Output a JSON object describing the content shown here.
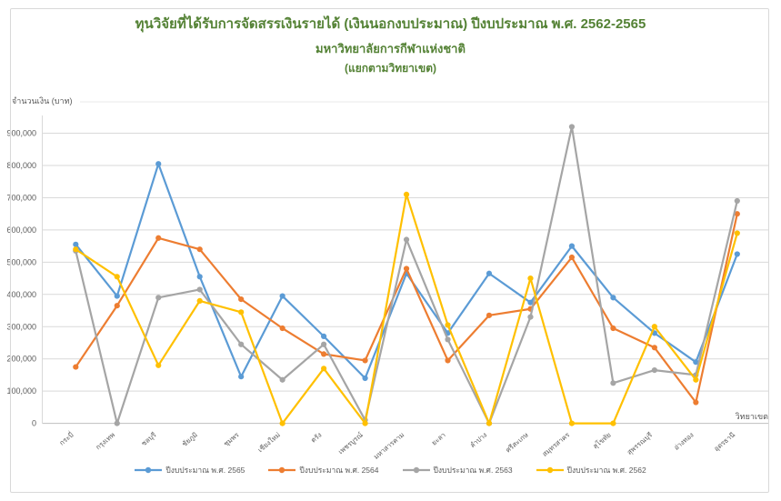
{
  "chart": {
    "title_line1": "ทุนวิจัยที่ได้รับการจัดสรรเงินรายได้ (เงินนอกงบประมาณ) ปีงบประมาณ พ.ศ. 2562-2565",
    "title_line2": "มหาวิทยาลัยการกีฬาแห่งชาติ",
    "title_line3": "(แยกตามวิทยาเขต)",
    "y_axis_title": "จำนวนเงิน (บาท)",
    "x_axis_title": "วิทยาเขต",
    "title_color": "#548235"
  },
  "chart_data": {
    "type": "line",
    "title": "ทุนวิจัยที่ได้รับการจัดสรรเงินรายได้ (เงินนอกงบประมาณ) ปีงบประมาณ พ.ศ. 2562-2565 มหาวิทยาลัยการกีฬาแห่งชาติ (แยกตามวิทยาเขต)",
    "xlabel": "วิทยาเขต",
    "ylabel": "จำนวนเงิน (บาท)",
    "ylim": [
      0,
      900000
    ],
    "grid": true,
    "legend_position": "bottom",
    "y_ticks": [
      "0",
      "100,000",
      "200,000",
      "300,000",
      "400,000",
      "500,000",
      "600,000",
      "700,000",
      "800,000",
      "900,000"
    ],
    "categories": [
      "กระบี่",
      "กรุงเทพ",
      "ชลบุรี",
      "ชัยภูมิ",
      "ชุมพร",
      "เชียงใหม่",
      "ตรัง",
      "เพชรบูรณ์",
      "มหาสารคาม",
      "ยะลา",
      "ลำปาง",
      "ศรีสะเกษ",
      "สมุทรสาคร",
      "สุโขทัย",
      "สุพรรณบุรี",
      "อ่างทอง",
      "อุดรธานี"
    ],
    "series": [
      {
        "name": "ปีงบประมาณ พ.ศ. 2565",
        "color": "#5B9BD5",
        "values": [
          555000,
          395000,
          805000,
          455000,
          145000,
          395000,
          270000,
          140000,
          465000,
          280000,
          465000,
          375000,
          550000,
          390000,
          280000,
          190000,
          525000
        ]
      },
      {
        "name": "ปีงบประมาณ พ.ศ. 2564",
        "color": "#ED7D31",
        "values": [
          175000,
          365000,
          575000,
          540000,
          385000,
          295000,
          215000,
          195000,
          480000,
          195000,
          335000,
          355000,
          515000,
          295000,
          235000,
          65000,
          650000
        ]
      },
      {
        "name": "ปีงบประมาณ พ.ศ. 2563",
        "color": "#A5A5A5",
        "values": [
          535000,
          0,
          390000,
          415000,
          245000,
          135000,
          245000,
          10000,
          570000,
          260000,
          0,
          330000,
          920000,
          125000,
          165000,
          150000,
          690000
        ]
      },
      {
        "name": "ปีงบประมาณ พ.ศ. 2562",
        "color": "#FFC000",
        "values": [
          540000,
          455000,
          180000,
          380000,
          345000,
          0,
          170000,
          0,
          710000,
          305000,
          0,
          450000,
          0,
          0,
          300000,
          135000,
          590000
        ]
      }
    ]
  },
  "style_colors": {
    "gridline": "#d9d9d9",
    "axis_line": "#bfbfbf",
    "axis_text": "#595959",
    "border": "#d9d9d9"
  }
}
